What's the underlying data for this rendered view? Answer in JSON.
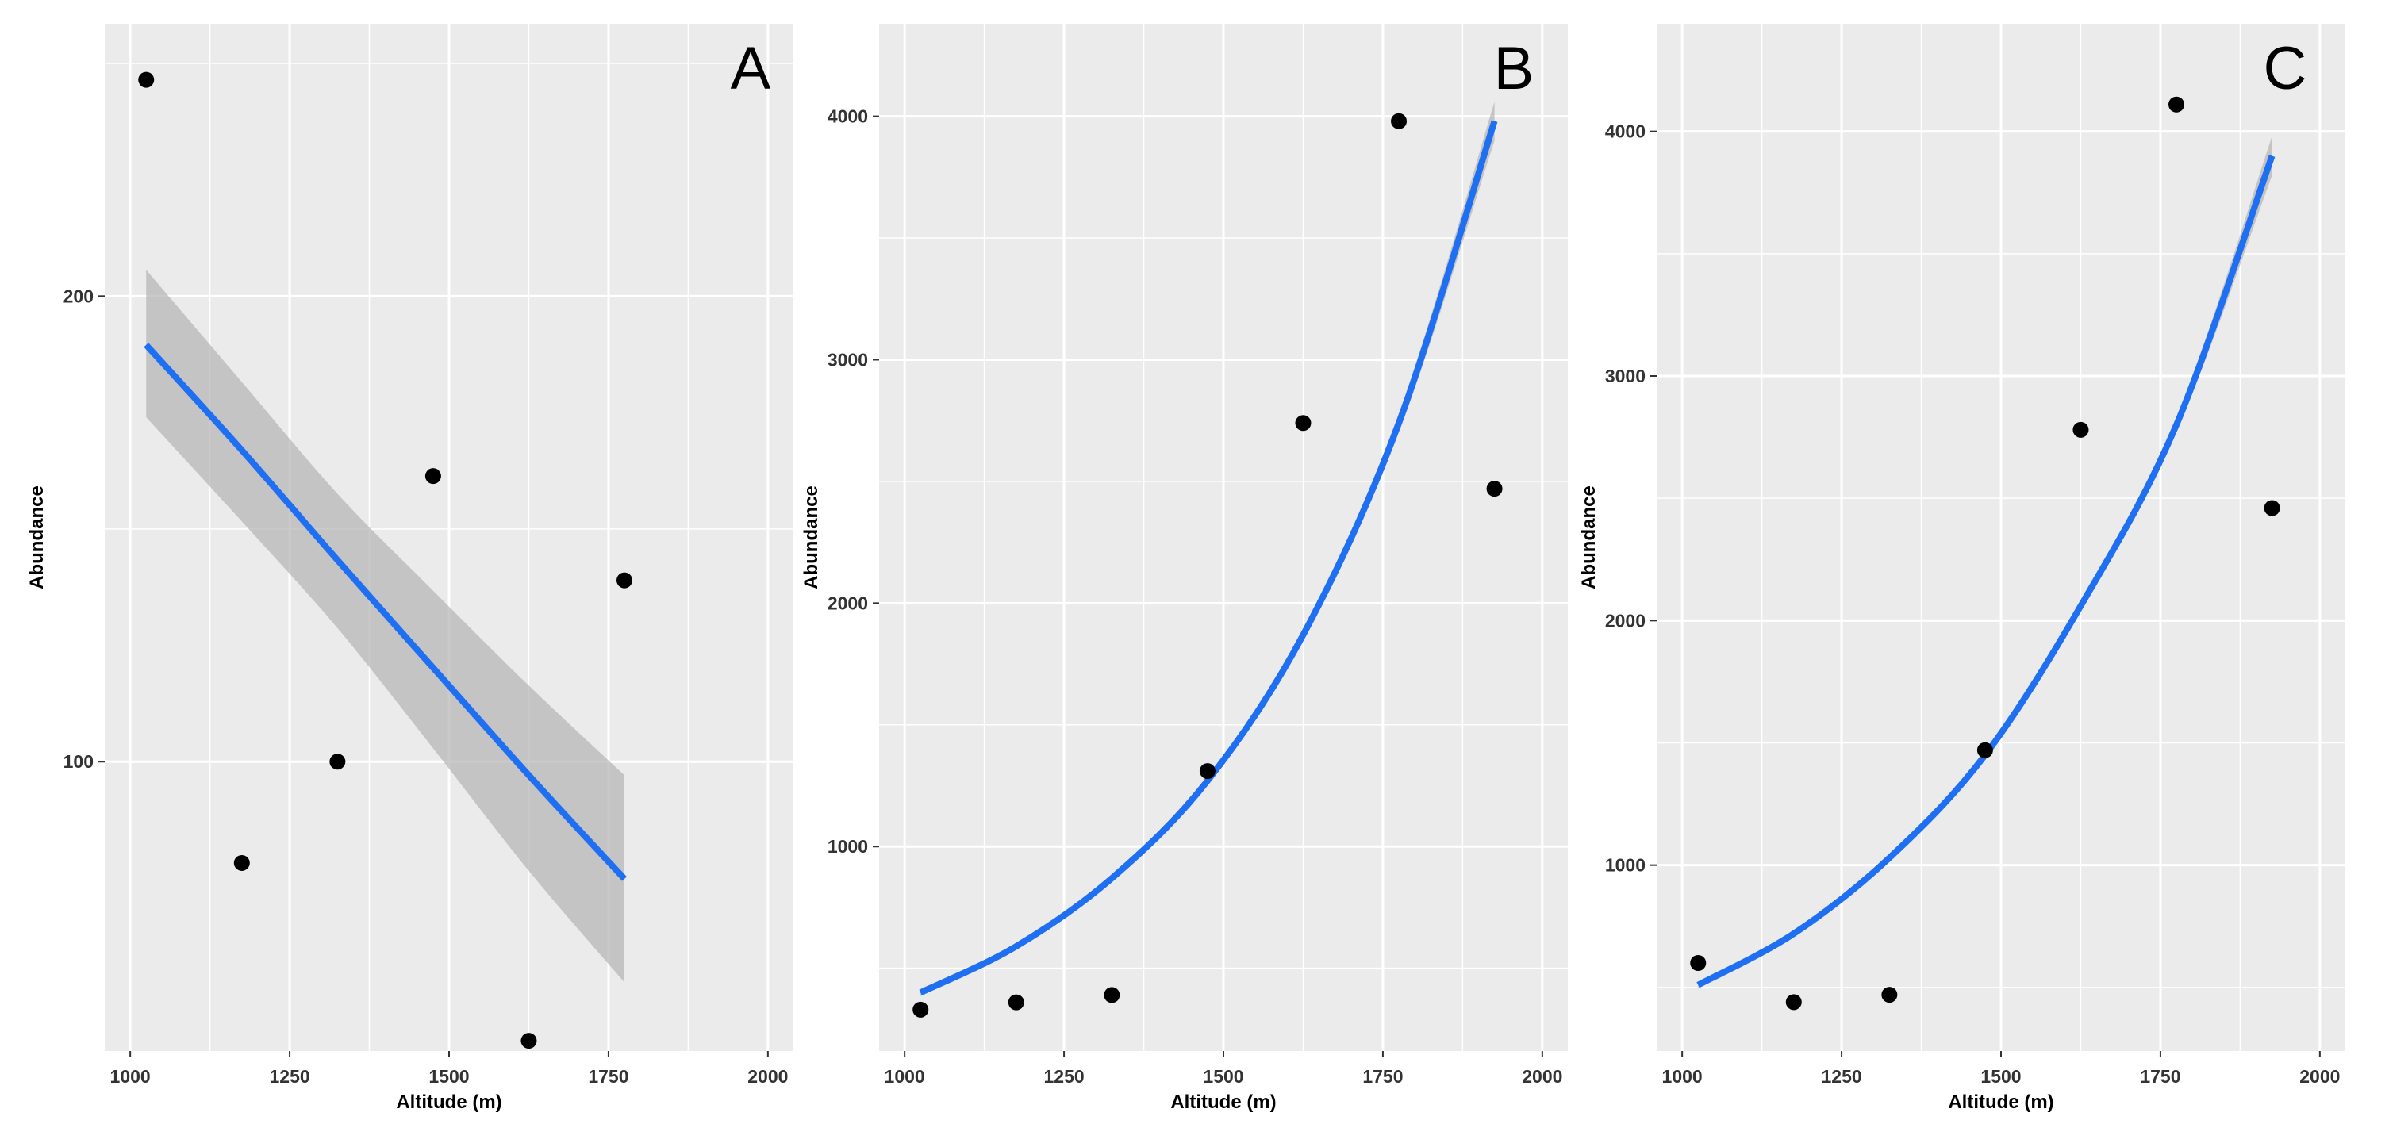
{
  "figure": {
    "panels": [
      "A",
      "B",
      "C"
    ]
  },
  "chart_data": [
    {
      "type": "scatter",
      "panel_label": "A",
      "xlabel": "Altitude (m)",
      "ylabel": "Abundance",
      "y_scale": "log",
      "xlim": [
        960,
        2040
      ],
      "ylim": [
        65,
        300
      ],
      "x_ticks": [
        1000,
        1250,
        1500,
        1750,
        2000
      ],
      "x_tick_labels": [
        "1000",
        "1250",
        "1500",
        "1750",
        "2000"
      ],
      "y_ticks": [
        100,
        200
      ],
      "y_tick_labels": [
        "100",
        "200"
      ],
      "y_minor_gridlines": [
        141.4,
        282.8
      ],
      "grid": true,
      "colors": {
        "background": "#ebebeb",
        "grid": "#ffffff",
        "fit": "#1f6ff2",
        "ribbon": "#b3b3b3",
        "points": "#000000"
      },
      "points": {
        "x": [
          1025,
          1175,
          1325,
          1475,
          1625,
          1775
        ],
        "y": [
          276,
          86,
          100,
          153,
          66,
          131
        ]
      },
      "fit": {
        "x": [
          1025,
          1175,
          1325,
          1475,
          1625,
          1775
        ],
        "y": [
          186,
          159,
          135,
          115,
          98,
          84
        ]
      },
      "ribbon": {
        "x": [
          1025,
          1175,
          1325,
          1475,
          1625,
          1775
        ],
        "lower": [
          167,
          143,
          122,
          102,
          85,
          72
        ],
        "upper": [
          208,
          176,
          149,
          129,
          112,
          98
        ]
      }
    },
    {
      "type": "scatter",
      "panel_label": "B",
      "xlabel": "Altitude (m)",
      "ylabel": "Abundance",
      "xlim": [
        960,
        2040
      ],
      "ylim": [
        160,
        4380
      ],
      "x_ticks": [
        1000,
        1250,
        1500,
        1750,
        2000
      ],
      "x_tick_labels": [
        "1000",
        "1250",
        "1500",
        "1750",
        "2000"
      ],
      "y_ticks": [
        1000,
        2000,
        3000,
        4000
      ],
      "y_tick_labels": [
        "1000",
        "2000",
        "3000",
        "4000"
      ],
      "y_minor_gridlines": [
        500,
        1500,
        2500,
        3500
      ],
      "grid": true,
      "colors": {
        "background": "#ebebeb",
        "grid": "#ffffff",
        "fit": "#1f6ff2",
        "ribbon": "#b3b3b3",
        "points": "#000000"
      },
      "points": {
        "x": [
          1025,
          1175,
          1325,
          1475,
          1625,
          1775,
          1925
        ],
        "y": [
          330,
          360,
          390,
          1310,
          2740,
          3980,
          2470
        ]
      },
      "fit": {
        "x": [
          1025,
          1175,
          1325,
          1475,
          1625,
          1775,
          1925
        ],
        "y": [
          400,
          590,
          870,
          1270,
          1870,
          2740,
          3980
        ]
      },
      "ribbon": {
        "x": [
          1025,
          1175,
          1325,
          1475,
          1625,
          1775,
          1925
        ],
        "lower": [
          385,
          575,
          855,
          1255,
          1845,
          2700,
          3900
        ],
        "upper": [
          415,
          605,
          885,
          1285,
          1895,
          2780,
          4060
        ]
      }
    },
    {
      "type": "scatter",
      "panel_label": "C",
      "xlabel": "Altitude (m)",
      "ylabel": "Abundance",
      "xlim": [
        960,
        2040
      ],
      "ylim": [
        240,
        4440
      ],
      "x_ticks": [
        1000,
        1250,
        1500,
        1750,
        2000
      ],
      "x_tick_labels": [
        "1000",
        "1250",
        "1500",
        "1750",
        "2000"
      ],
      "y_ticks": [
        1000,
        2000,
        3000,
        4000
      ],
      "y_tick_labels": [
        "1000",
        "2000",
        "3000",
        "4000"
      ],
      "y_minor_gridlines": [
        500,
        1500,
        2500,
        3500
      ],
      "grid": true,
      "colors": {
        "background": "#ebebeb",
        "grid": "#ffffff",
        "fit": "#1f6ff2",
        "ribbon": "#b3b3b3",
        "points": "#000000"
      },
      "points": {
        "x": [
          1025,
          1175,
          1325,
          1475,
          1625,
          1775,
          1925
        ],
        "y": [
          600,
          440,
          470,
          1470,
          2780,
          4110,
          2460
        ]
      },
      "fit": {
        "x": [
          1025,
          1175,
          1325,
          1475,
          1625,
          1775,
          1925
        ],
        "y": [
          510,
          720,
          1030,
          1450,
          2060,
          2800,
          3900
        ]
      },
      "ribbon": {
        "x": [
          1025,
          1175,
          1325,
          1475,
          1625,
          1775,
          1925
        ],
        "lower": [
          495,
          705,
          1015,
          1435,
          2040,
          2770,
          3820
        ],
        "upper": [
          525,
          735,
          1045,
          1465,
          2080,
          2830,
          3980
        ]
      }
    }
  ]
}
